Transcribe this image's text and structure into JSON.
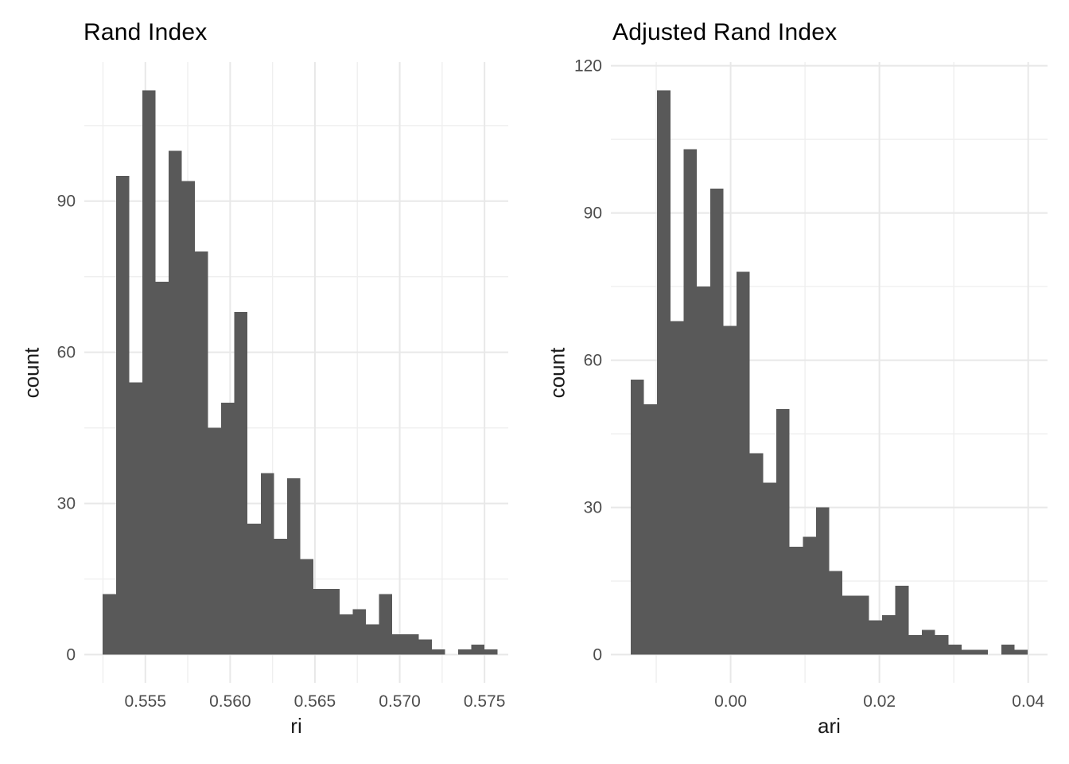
{
  "colors": {
    "background": "#ffffff",
    "bar_fill": "#595959",
    "grid_major": "#e8e8e8",
    "grid_minor": "#efefef",
    "tick_text": "#4d4d4d",
    "title_text": "#000000"
  },
  "chart_data": [
    {
      "type": "bar",
      "subtype": "histogram",
      "title": "Rand Index",
      "xlabel": "ri",
      "ylabel": "count",
      "bin_start": 0.55249,
      "bin_width": 0.000776,
      "counts": [
        12,
        95,
        54,
        112,
        74,
        100,
        94,
        80,
        45,
        50,
        68,
        26,
        36,
        23,
        35,
        19,
        13,
        13,
        8,
        9,
        6,
        12,
        4,
        4,
        3,
        1,
        0,
        1,
        2,
        1
      ],
      "x_axis": {
        "domain": [
          0.5514,
          0.5764
        ],
        "major_ticks": [
          0.555,
          0.56,
          0.565,
          0.57,
          0.575
        ],
        "major_labels": [
          "0.555",
          "0.560",
          "0.565",
          "0.570",
          "0.575"
        ],
        "minor_ticks": [
          0.5525,
          0.5575,
          0.5625,
          0.5675,
          0.5725
        ]
      },
      "y_axis": {
        "domain": [
          -5.6,
          117.6
        ],
        "major_ticks": [
          0,
          30,
          60,
          90
        ],
        "major_labels": [
          "0",
          "30",
          "60",
          "90"
        ],
        "minor_ticks": [
          15,
          45,
          75,
          105
        ]
      },
      "grid": true,
      "legend": "none"
    },
    {
      "type": "bar",
      "subtype": "histogram",
      "title": "Adjusted Rand Index",
      "xlabel": "ari",
      "ylabel": "count",
      "bin_start": -0.01343,
      "bin_width": 0.001779,
      "counts": [
        56,
        51,
        115,
        68,
        103,
        75,
        95,
        67,
        78,
        41,
        35,
        50,
        22,
        24,
        30,
        17,
        12,
        12,
        7,
        8,
        14,
        4,
        5,
        4,
        2,
        1,
        1,
        0,
        2,
        1
      ],
      "x_axis": {
        "domain": [
          -0.0161,
          0.0426
        ],
        "major_ticks": [
          0.0,
          0.02,
          0.04
        ],
        "major_labels": [
          "0.00",
          "0.02",
          "0.04"
        ],
        "minor_ticks": [
          -0.01,
          0.01,
          0.03
        ]
      },
      "y_axis": {
        "domain": [
          -5.75,
          120.75
        ],
        "major_ticks": [
          0,
          30,
          60,
          90,
          120
        ],
        "major_labels": [
          "0",
          "30",
          "60",
          "90",
          "120"
        ],
        "minor_ticks": [
          15,
          45,
          75,
          105
        ]
      },
      "grid": true,
      "legend": "none"
    }
  ]
}
